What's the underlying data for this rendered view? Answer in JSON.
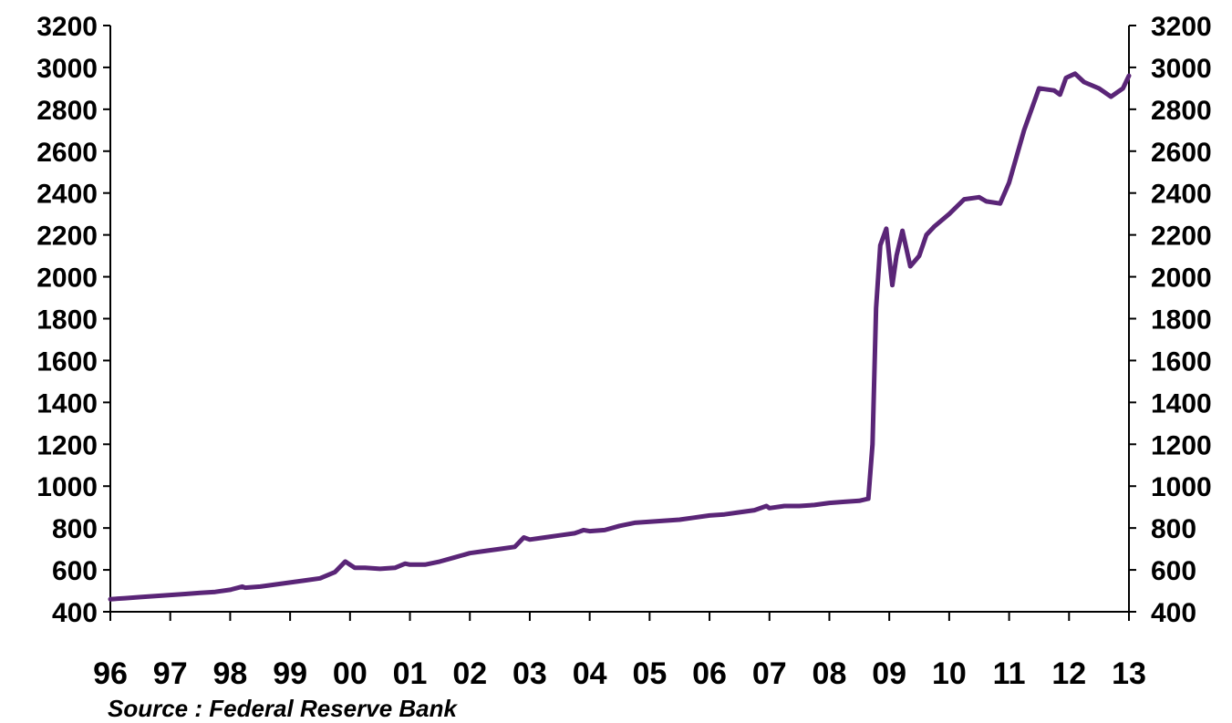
{
  "chart_data": {
    "type": "line",
    "title": "",
    "xlabel": "",
    "ylabel": "",
    "source": "Source : Federal Reserve Bank",
    "ylim": [
      400,
      3200
    ],
    "y_ticks": [
      400,
      600,
      800,
      1000,
      1200,
      1400,
      1600,
      1800,
      2000,
      2200,
      2400,
      2600,
      2800,
      3000,
      3200
    ],
    "x_tick_labels": [
      "96",
      "97",
      "98",
      "99",
      "00",
      "01",
      "02",
      "03",
      "04",
      "05",
      "06",
      "07",
      "08",
      "09",
      "10",
      "11",
      "12",
      "13"
    ],
    "x_range": [
      1996.0,
      2013.0
    ],
    "grid": false,
    "legend": "none",
    "colors": {
      "line": "#5a2577",
      "axis": "#000000"
    },
    "series": [
      {
        "name": "",
        "points": [
          [
            1996.0,
            460
          ],
          [
            1996.25,
            465
          ],
          [
            1996.5,
            470
          ],
          [
            1996.75,
            475
          ],
          [
            1997.0,
            480
          ],
          [
            1997.25,
            485
          ],
          [
            1997.5,
            490
          ],
          [
            1997.75,
            495
          ],
          [
            1998.0,
            505
          ],
          [
            1998.2,
            520
          ],
          [
            1998.25,
            515
          ],
          [
            1998.5,
            520
          ],
          [
            1998.75,
            530
          ],
          [
            1999.0,
            540
          ],
          [
            1999.25,
            550
          ],
          [
            1999.5,
            560
          ],
          [
            1999.75,
            590
          ],
          [
            1999.92,
            640
          ],
          [
            2000.08,
            610
          ],
          [
            2000.25,
            610
          ],
          [
            2000.5,
            605
          ],
          [
            2000.75,
            610
          ],
          [
            2000.92,
            630
          ],
          [
            2001.0,
            625
          ],
          [
            2001.25,
            625
          ],
          [
            2001.5,
            640
          ],
          [
            2001.75,
            660
          ],
          [
            2002.0,
            680
          ],
          [
            2002.25,
            690
          ],
          [
            2002.5,
            700
          ],
          [
            2002.75,
            710
          ],
          [
            2002.9,
            755
          ],
          [
            2003.0,
            745
          ],
          [
            2003.25,
            755
          ],
          [
            2003.5,
            765
          ],
          [
            2003.75,
            775
          ],
          [
            2003.9,
            790
          ],
          [
            2004.0,
            785
          ],
          [
            2004.25,
            790
          ],
          [
            2004.5,
            810
          ],
          [
            2004.75,
            825
          ],
          [
            2005.0,
            830
          ],
          [
            2005.25,
            835
          ],
          [
            2005.5,
            840
          ],
          [
            2005.75,
            850
          ],
          [
            2006.0,
            860
          ],
          [
            2006.25,
            865
          ],
          [
            2006.5,
            875
          ],
          [
            2006.75,
            885
          ],
          [
            2006.95,
            905
          ],
          [
            2007.0,
            895
          ],
          [
            2007.25,
            905
          ],
          [
            2007.5,
            905
          ],
          [
            2007.75,
            910
          ],
          [
            2008.0,
            920
          ],
          [
            2008.25,
            925
          ],
          [
            2008.5,
            930
          ],
          [
            2008.65,
            940
          ],
          [
            2008.72,
            1200
          ],
          [
            2008.78,
            1850
          ],
          [
            2008.85,
            2150
          ],
          [
            2008.95,
            2230
          ],
          [
            2009.05,
            1960
          ],
          [
            2009.12,
            2100
          ],
          [
            2009.22,
            2220
          ],
          [
            2009.35,
            2050
          ],
          [
            2009.5,
            2100
          ],
          [
            2009.62,
            2200
          ],
          [
            2009.75,
            2240
          ],
          [
            2010.0,
            2300
          ],
          [
            2010.25,
            2370
          ],
          [
            2010.5,
            2380
          ],
          [
            2010.62,
            2360
          ],
          [
            2010.85,
            2350
          ],
          [
            2011.0,
            2450
          ],
          [
            2011.25,
            2700
          ],
          [
            2011.5,
            2900
          ],
          [
            2011.75,
            2890
          ],
          [
            2011.85,
            2870
          ],
          [
            2011.95,
            2950
          ],
          [
            2012.1,
            2970
          ],
          [
            2012.25,
            2930
          ],
          [
            2012.5,
            2900
          ],
          [
            2012.7,
            2860
          ],
          [
            2012.9,
            2900
          ],
          [
            2013.0,
            2960
          ]
        ]
      }
    ]
  }
}
